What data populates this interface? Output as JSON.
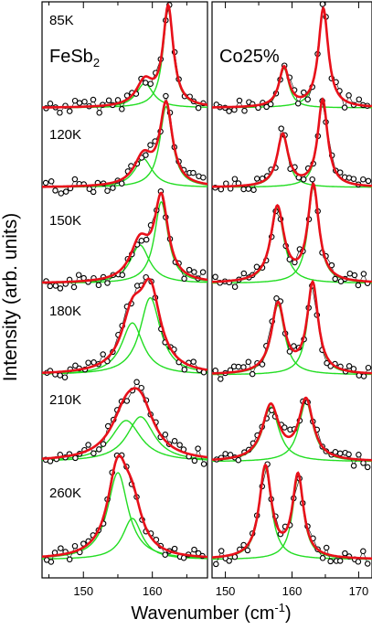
{
  "chart_data": {
    "type": "line",
    "ylabel": "Intensity (arb. units)",
    "xlabel_main": "Wavenumber (cm",
    "xlabel_sup": "-1",
    "xlabel_close": ")",
    "colors": {
      "fit_total": "#e8101a",
      "fit_component": "#22dd22",
      "data": "#000000"
    },
    "panels": [
      {
        "sample_label": "FeSb",
        "sample_sub": "2",
        "xlim": [
          144,
          168
        ],
        "xticks": [
          150,
          160
        ],
        "spectra": [
          {
            "temperature": "85K",
            "peaks": [
              {
                "center": 158.9,
                "width": 1.5,
                "height": 0.25
              },
              {
                "center": 162.3,
                "width": 0.9,
                "height": 1.0
              }
            ]
          },
          {
            "temperature": "120K",
            "peaks": [
              {
                "center": 158.7,
                "width": 1.6,
                "height": 0.33
              },
              {
                "center": 162.0,
                "width": 1.1,
                "height": 0.93
              }
            ]
          },
          {
            "temperature": "150K",
            "peaks": [
              {
                "center": 158.2,
                "width": 1.7,
                "height": 0.4
              },
              {
                "center": 161.3,
                "width": 1.2,
                "height": 0.85
              }
            ]
          },
          {
            "temperature": "180K",
            "peaks": [
              {
                "center": 157.1,
                "width": 1.9,
                "height": 0.58
              },
              {
                "center": 159.7,
                "width": 1.8,
                "height": 0.86
              }
            ]
          },
          {
            "temperature": "210K",
            "peaks": [
              {
                "center": 156.2,
                "width": 2.6,
                "height": 0.55
              },
              {
                "center": 158.3,
                "width": 2.4,
                "height": 0.6
              }
            ]
          },
          {
            "temperature": "260K",
            "peaks": [
              {
                "center": 155.0,
                "width": 1.8,
                "height": 0.95
              },
              {
                "center": 157.1,
                "width": 1.7,
                "height": 0.45
              }
            ]
          }
        ]
      },
      {
        "sample_label": "Co25%",
        "xlim": [
          148,
          172
        ],
        "xticks": [
          150,
          160,
          170
        ],
        "spectra": [
          {
            "temperature": "85K",
            "peaks": [
              {
                "center": 158.8,
                "width": 0.9,
                "height": 0.4
              },
              {
                "center": 164.7,
                "width": 0.9,
                "height": 1.0
              }
            ]
          },
          {
            "temperature": "120K",
            "peaks": [
              {
                "center": 158.6,
                "width": 1.0,
                "height": 0.6
              },
              {
                "center": 164.6,
                "width": 0.9,
                "height": 1.0
              }
            ]
          },
          {
            "temperature": "150K",
            "peaks": [
              {
                "center": 157.8,
                "width": 1.2,
                "height": 0.78
              },
              {
                "center": 163.2,
                "width": 1.0,
                "height": 1.0
              }
            ]
          },
          {
            "temperature": "180K",
            "peaks": [
              {
                "center": 157.9,
                "width": 1.2,
                "height": 0.78
              },
              {
                "center": 163.1,
                "width": 1.0,
                "height": 1.0
              }
            ]
          },
          {
            "temperature": "210K",
            "peaks": [
              {
                "center": 156.8,
                "width": 1.5,
                "height": 0.73
              },
              {
                "center": 162.1,
                "width": 1.3,
                "height": 0.8
              }
            ]
          },
          {
            "temperature": "260K",
            "peaks": [
              {
                "center": 156.0,
                "width": 1.1,
                "height": 1.0
              },
              {
                "center": 160.9,
                "width": 1.0,
                "height": 0.9
              }
            ]
          }
        ]
      }
    ]
  }
}
